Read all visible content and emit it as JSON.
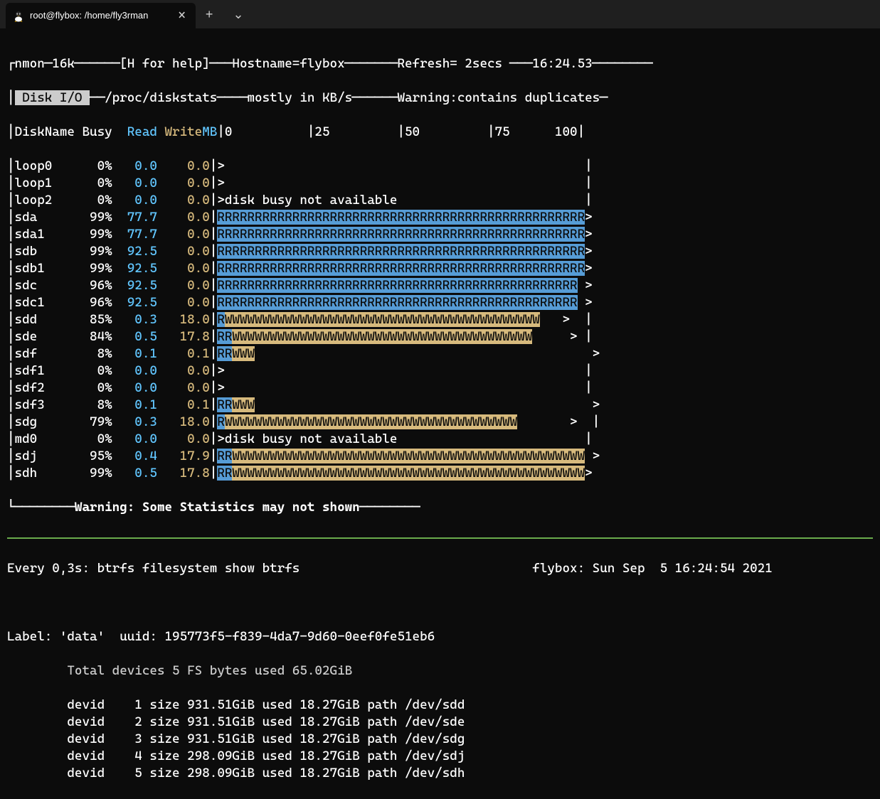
{
  "colors": {
    "bg": "#0c0c0c",
    "fg": "#cccccc",
    "white": "#ffffff",
    "blue": "#569cd6",
    "bright_blue": "#61c6ff",
    "yellow": "#d7ba7d",
    "green_hr": "#6aab4c",
    "titlebar_bg": "#1f1f1f"
  },
  "titlebar": {
    "tab_title": "root@flybox: /home/fly3rman",
    "close_glyph": "×",
    "plus_glyph": "+",
    "chevron_glyph": "⌄"
  },
  "nmon": {
    "header": {
      "version": "nmon─16k",
      "help": "[H for help]",
      "hostname_label": "Hostname=",
      "hostname": "flybox",
      "refresh_label": "Refresh= ",
      "refresh": "2secs",
      "time": "16:24.53"
    },
    "section": {
      "title": " Disk I/O ",
      "source": "/proc/diskstats",
      "units": "mostly in KB/s",
      "warning": "Warning:contains duplicates"
    },
    "columns": {
      "disk": "DiskName",
      "busy": "Busy",
      "read": "Read",
      "write": "Write",
      "mb": "MB",
      "scale0": "0",
      "scale25": "25",
      "scale50": "50",
      "scale75": "75",
      "scale100": "100"
    },
    "bar_width_chars": 49,
    "disks": [
      {
        "name": "loop0",
        "busy": "0%",
        "read": "0.0",
        "write": "0.0",
        "graph": ">",
        "reads": 0,
        "writes": 0,
        "special": "",
        "trail": "",
        "end": "|"
      },
      {
        "name": "loop1",
        "busy": "0%",
        "read": "0.0",
        "write": "0.0",
        "graph": ">",
        "reads": 0,
        "writes": 0,
        "special": "",
        "trail": "",
        "end": "|"
      },
      {
        "name": "loop2",
        "busy": "0%",
        "read": "0.0",
        "write": "0.0",
        "graph": "",
        "reads": 0,
        "writes": 0,
        "special": ">disk busy not available",
        "trail": "",
        "end": "|"
      },
      {
        "name": "sda",
        "busy": "99%",
        "read": "77.7",
        "write": "0.0",
        "graph": "",
        "reads": 49,
        "writes": 0,
        "special": "",
        "trail": ">",
        "end": ""
      },
      {
        "name": "sda1",
        "busy": "99%",
        "read": "77.7",
        "write": "0.0",
        "graph": "",
        "reads": 49,
        "writes": 0,
        "special": "",
        "trail": ">",
        "end": ""
      },
      {
        "name": "sdb",
        "busy": "99%",
        "read": "92.5",
        "write": "0.0",
        "graph": "",
        "reads": 49,
        "writes": 0,
        "special": "",
        "trail": ">",
        "end": ""
      },
      {
        "name": "sdb1",
        "busy": "99%",
        "read": "92.5",
        "write": "0.0",
        "graph": "",
        "reads": 49,
        "writes": 0,
        "special": "",
        "trail": ">",
        "end": ""
      },
      {
        "name": "sdc",
        "busy": "96%",
        "read": "92.5",
        "write": "0.0",
        "graph": "",
        "reads": 48,
        "writes": 0,
        "special": "",
        "trail": " >",
        "end": ""
      },
      {
        "name": "sdc1",
        "busy": "96%",
        "read": "92.5",
        "write": "0.0",
        "graph": "",
        "reads": 48,
        "writes": 0,
        "special": "",
        "trail": " >",
        "end": ""
      },
      {
        "name": "sdd",
        "busy": "85%",
        "read": "0.3",
        "write": "18.0",
        "graph": "",
        "reads": 1,
        "writes": 42,
        "special": "",
        "trail": "   >  |",
        "end": ""
      },
      {
        "name": "sde",
        "busy": "84%",
        "read": "0.5",
        "write": "17.8",
        "graph": "",
        "reads": 2,
        "writes": 40,
        "special": "",
        "trail": "     > |",
        "end": ""
      },
      {
        "name": "sdf",
        "busy": "8%",
        "read": "0.1",
        "write": "0.1",
        "graph": "",
        "reads": 2,
        "writes": 3,
        "special": "",
        "trail": "                                             >",
        "end": ""
      },
      {
        "name": "sdf1",
        "busy": "0%",
        "read": "0.0",
        "write": "0.0",
        "graph": ">",
        "reads": 0,
        "writes": 0,
        "special": "",
        "trail": "",
        "end": "|"
      },
      {
        "name": "sdf2",
        "busy": "0%",
        "read": "0.0",
        "write": "0.0",
        "graph": ">",
        "reads": 0,
        "writes": 0,
        "special": "",
        "trail": "",
        "end": "|"
      },
      {
        "name": "sdf3",
        "busy": "8%",
        "read": "0.1",
        "write": "0.1",
        "graph": "",
        "reads": 2,
        "writes": 3,
        "special": "",
        "trail": "                                             >",
        "end": ""
      },
      {
        "name": "sdg",
        "busy": "79%",
        "read": "0.3",
        "write": "18.0",
        "graph": "",
        "reads": 1,
        "writes": 39,
        "special": "",
        "trail": "       >  |",
        "end": ""
      },
      {
        "name": "md0",
        "busy": "0%",
        "read": "0.0",
        "write": "0.0",
        "graph": "",
        "reads": 0,
        "writes": 0,
        "special": ">disk busy not available",
        "trail": "",
        "end": "|"
      },
      {
        "name": "sdj",
        "busy": "95%",
        "read": "0.4",
        "write": "17.9",
        "graph": "",
        "reads": 2,
        "writes": 47,
        "special": "",
        "trail": " >",
        "end": ""
      },
      {
        "name": "sdh",
        "busy": "99%",
        "read": "0.5",
        "write": "17.8",
        "graph": "",
        "reads": 2,
        "writes": 47,
        "special": "",
        "trail": ">",
        "end": ""
      }
    ],
    "footer_warning": "Warning: Some Statistics may not shown"
  },
  "watch": {
    "left": "Every 0,3s: btrfs filesystem show btrfs",
    "right": "flybox: Sun Sep  5 16:24:54 2021"
  },
  "btrfs": {
    "label_line_prefix": "Label: 'data'  uuid: ",
    "uuid": "195773f5-f839-4da7-9d60-0eef0fe51eb6",
    "total_line": "        Total devices 5 FS bytes used 65.02GiB",
    "devices": [
      "        devid    1 size 931.51GiB used 18.27GiB path /dev/sdd",
      "        devid    2 size 931.51GiB used 18.27GiB path /dev/sde",
      "        devid    3 size 931.51GiB used 18.27GiB path /dev/sdg",
      "        devid    4 size 298.09GiB used 18.27GiB path /dev/sdj",
      "        devid    5 size 298.09GiB used 18.27GiB path /dev/sdh"
    ]
  }
}
